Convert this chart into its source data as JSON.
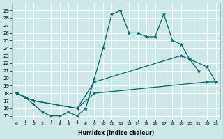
{
  "bg_color": "#cce8e8",
  "grid_color": "#ffffff",
  "line_color": "#006666",
  "xlabel": "Humidex (Indice chaleur)",
  "xlim": [
    -0.5,
    23.5
  ],
  "ylim": [
    14.5,
    30.0
  ],
  "xticks": [
    0,
    1,
    2,
    3,
    4,
    5,
    6,
    7,
    8,
    9,
    10,
    11,
    12,
    13,
    14,
    15,
    16,
    17,
    18,
    19,
    20,
    21,
    22,
    23
  ],
  "yticks": [
    15,
    16,
    17,
    18,
    19,
    20,
    21,
    22,
    23,
    24,
    25,
    26,
    27,
    28,
    29
  ],
  "line1_x": [
    0,
    1,
    2,
    3,
    4,
    5,
    6,
    7,
    8,
    9,
    10,
    11,
    12,
    13,
    14,
    15,
    16,
    17,
    18,
    19,
    20,
    21
  ],
  "line1_y": [
    18,
    17.5,
    16.5,
    15.5,
    15,
    15,
    15.5,
    15,
    16,
    20,
    24,
    28.5,
    29,
    26,
    26,
    25.5,
    25.5,
    28.5,
    25,
    24.5,
    22.5,
    21
  ],
  "line2_x": [
    0,
    2,
    7,
    9,
    19,
    20,
    22,
    23
  ],
  "line2_y": [
    18,
    17,
    16,
    19.5,
    23,
    22.5,
    21.5,
    19.5
  ],
  "line3_x": [
    0,
    2,
    7,
    9,
    22,
    23
  ],
  "line3_y": [
    18,
    17,
    16,
    18,
    19.5,
    19.5
  ]
}
